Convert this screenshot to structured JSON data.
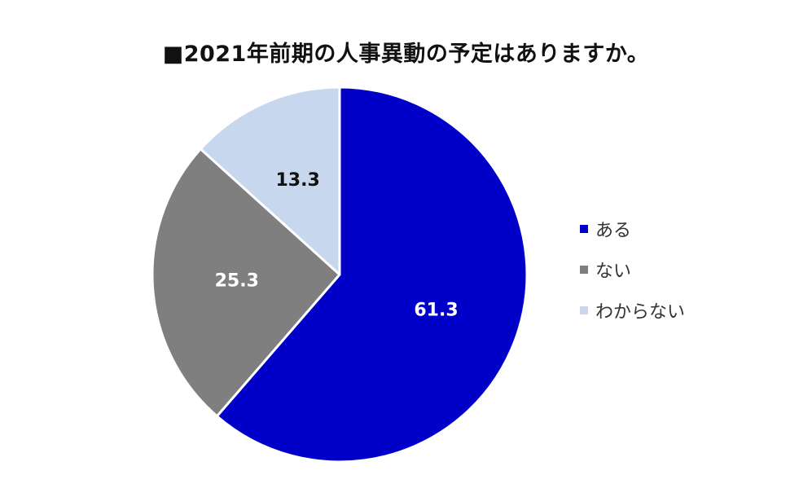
{
  "chart_data": {
    "type": "pie",
    "title": "■2021年前期の人事異動の予定はありますか。",
    "categories": [
      "ある",
      "ない",
      "わからない"
    ],
    "values": [
      61.3,
      25.3,
      13.3
    ],
    "data_labels": [
      "61.3",
      "25.3",
      "13.3"
    ],
    "colors": [
      "#0000c8",
      "#7f7f7f",
      "#c6d7ee"
    ],
    "label_colors": [
      "#ffffff",
      "#ffffff",
      "#111111"
    ],
    "start_angle": "12 o'clock",
    "direction": "clockwise",
    "legend_position": "right"
  }
}
